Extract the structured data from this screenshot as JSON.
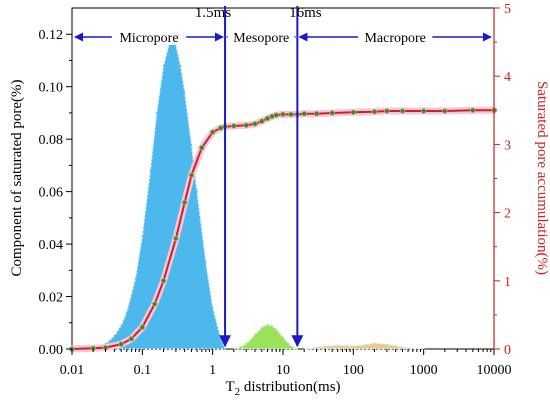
{
  "chart_data": {
    "type": "area",
    "xlabel_main": "T",
    "xlabel_sub": "2",
    "xlabel_rest": " distribution(ms)",
    "ylabel_left": "Component of saturated pore(%)",
    "ylabel_right": "Saturated pore accumulation(%)",
    "x_scale": "log",
    "xlim": [
      0.01,
      10000
    ],
    "ylim_left": [
      0,
      0.13
    ],
    "ylim_right": [
      0,
      5
    ],
    "x_ticks": [
      0.01,
      0.1,
      1,
      10,
      100,
      1000,
      10000
    ],
    "x_tick_labels": [
      "0.01",
      "0.1",
      "1",
      "10",
      "100",
      "1000",
      "10000"
    ],
    "y_left_ticks": [
      0,
      0.02,
      0.04,
      0.06,
      0.08,
      0.1,
      0.12
    ],
    "y_left_tick_labels": [
      "0.00",
      "0.02",
      "0.04",
      "0.06",
      "0.08",
      "0.10",
      "0.12"
    ],
    "y_right_ticks": [
      0,
      1,
      2,
      3,
      4,
      5
    ],
    "y_right_tick_labels": [
      "0",
      "1",
      "2",
      "3",
      "4",
      "5"
    ],
    "boundaries": [
      {
        "value": 1.5,
        "label": "1.5ms"
      },
      {
        "value": 16,
        "label": "16ms"
      }
    ],
    "regions": [
      {
        "label": "Micropore",
        "from": 0.01,
        "to": 1.5
      },
      {
        "label": "Mesopore",
        "from": 1.5,
        "to": 16
      },
      {
        "label": "Macropore",
        "from": 16,
        "to": 10000
      }
    ],
    "series": [
      {
        "axis": "left",
        "kind": "area",
        "color": "#4db8ec",
        "x": [
          0.01,
          0.015,
          0.02,
          0.03,
          0.04,
          0.05,
          0.06,
          0.08,
          0.1,
          0.13,
          0.16,
          0.2,
          0.25,
          0.3,
          0.35,
          0.4,
          0.5,
          0.6,
          0.8,
          1.0,
          1.3,
          1.5
        ],
        "y": [
          0,
          0.0002,
          0.0006,
          0.002,
          0.005,
          0.009,
          0.014,
          0.027,
          0.043,
          0.068,
          0.09,
          0.108,
          0.118,
          0.116,
          0.108,
          0.098,
          0.078,
          0.06,
          0.033,
          0.016,
          0.004,
          0
        ]
      },
      {
        "axis": "left",
        "kind": "area",
        "color": "#9be25a",
        "x": [
          2.0,
          2.5,
          3.0,
          4.0,
          5.0,
          6.0,
          7.0,
          8.0,
          10.0,
          12.0,
          14.0,
          16.0
        ],
        "y": [
          0,
          0.0008,
          0.002,
          0.0055,
          0.0082,
          0.0092,
          0.0088,
          0.0075,
          0.0045,
          0.002,
          0.0006,
          0
        ]
      },
      {
        "axis": "left",
        "kind": "area",
        "color": "#e9c98c",
        "x": [
          20,
          30,
          40,
          60,
          80,
          100,
          150,
          200,
          300,
          400,
          600,
          1000
        ],
        "y": [
          0,
          0.0006,
          0.001,
          0.0014,
          0.0012,
          0.0011,
          0.0016,
          0.0022,
          0.0018,
          0.0012,
          0.0004,
          0
        ]
      },
      {
        "axis": "right",
        "kind": "line",
        "color": "#cc2222",
        "x": [
          0.01,
          0.02,
          0.03,
          0.05,
          0.07,
          0.1,
          0.15,
          0.2,
          0.3,
          0.4,
          0.5,
          0.7,
          1.0,
          1.3,
          1.5,
          2,
          3,
          4,
          5,
          6,
          7,
          8,
          10,
          13,
          16,
          20,
          30,
          50,
          100,
          200,
          300,
          500,
          1000,
          2000,
          5000,
          10000
        ],
        "y": [
          0,
          0.01,
          0.02,
          0.07,
          0.15,
          0.32,
          0.66,
          1.0,
          1.62,
          2.15,
          2.55,
          2.95,
          3.18,
          3.24,
          3.26,
          3.27,
          3.28,
          3.3,
          3.34,
          3.38,
          3.41,
          3.43,
          3.44,
          3.44,
          3.44,
          3.45,
          3.45,
          3.46,
          3.47,
          3.48,
          3.49,
          3.49,
          3.49,
          3.49,
          3.5,
          3.5
        ]
      }
    ]
  }
}
